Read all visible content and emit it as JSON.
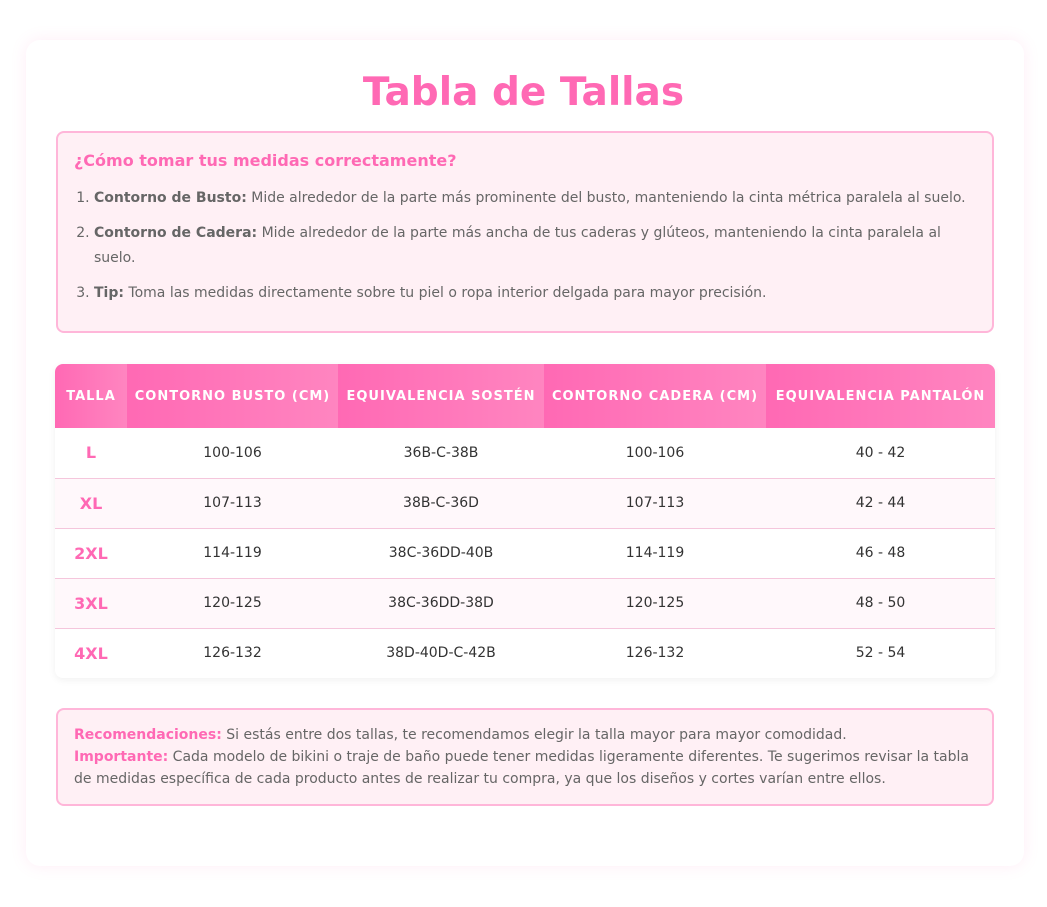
{
  "title": "Tabla de Tallas",
  "info": {
    "heading": "¿Cómo tomar tus medidas correctamente?",
    "items": [
      {
        "label": "Contorno de Busto:",
        "text": " Mide alrededor de la parte más prominente del busto, manteniendo la cinta métrica paralela al suelo."
      },
      {
        "label": "Contorno de Cadera:",
        "text": " Mide alrededor de la parte más ancha de tus caderas y glúteos, manteniendo la cinta paralela al suelo."
      },
      {
        "label": "Tip:",
        "text": " Toma las medidas directamente sobre tu piel o ropa interior delgada para mayor precisión."
      }
    ]
  },
  "table": {
    "headers": [
      "Talla",
      "Contorno Busto (cm)",
      "Equivalencia Sostén",
      "Contorno Cadera (cm)",
      "Equivalencia Pantalón"
    ],
    "rows": [
      [
        "L",
        "100-106",
        "36B-C-38B",
        "100-106",
        "40 - 42"
      ],
      [
        "XL",
        "107-113",
        "38B-C-36D",
        "107-113",
        "42 - 44"
      ],
      [
        "2XL",
        "114-119",
        "38C-36DD-40B",
        "114-119",
        "46 - 48"
      ],
      [
        "3XL",
        "120-125",
        "38C-36DD-38D",
        "120-125",
        "48 - 50"
      ],
      [
        "4XL",
        "126-132",
        "38D-40D-C-42B",
        "126-132",
        "52 - 54"
      ]
    ]
  },
  "notes": {
    "rec_label": "Recomendaciones:",
    "rec_text": " Si estás entre dos tallas, te recomendamos elegir la talla mayor para mayor comodidad.",
    "imp_label": "Importante:",
    "imp_text": " Cada modelo de bikini o traje de baño puede tener medidas ligeramente diferentes. Te sugerimos revisar la tabla de medidas específica de cada producto antes de realizar tu compra, ya que los diseños y cortes varían entre ellos."
  },
  "colors": {
    "accent": "#ff69b4",
    "box_bg": "#fff0f5",
    "box_border": "#ffb6d9"
  }
}
